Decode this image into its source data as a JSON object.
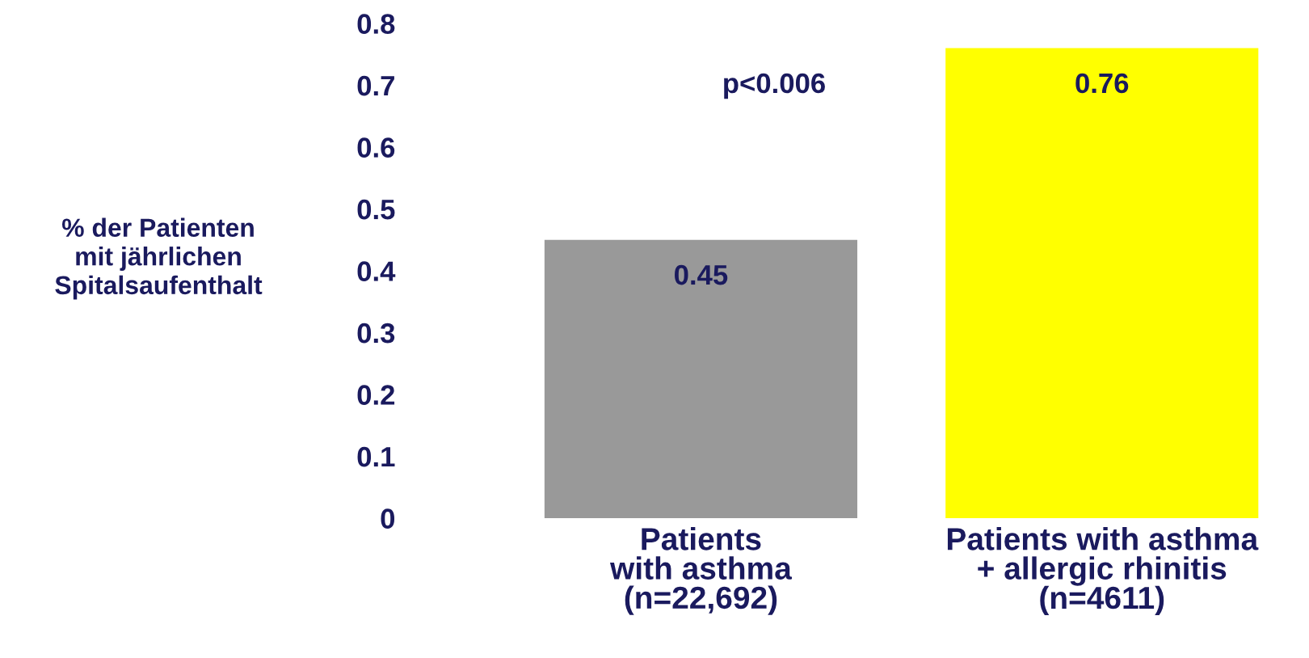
{
  "chart_data": {
    "type": "bar",
    "ylabel": "% der Patienten\nmit jährlichen\nSpitalsaufenthalt",
    "categories": [
      "Patients\nwith asthma\n(n=22,692)",
      "Patients with asthma\n+ allergic rhinitis\n(n=4611)"
    ],
    "values": [
      0.45,
      0.76
    ],
    "colors": [
      "#999999",
      "#ffff00"
    ],
    "ylim": [
      0,
      0.8
    ],
    "yticks": [
      {
        "value": 0,
        "label": "0"
      },
      0.1,
      0.2,
      0.3,
      0.4,
      0.5,
      0.6,
      0.7,
      0.8
    ],
    "data_labels": true,
    "annotations": [
      "p<0.006"
    ],
    "grid": false,
    "legend": false
  }
}
